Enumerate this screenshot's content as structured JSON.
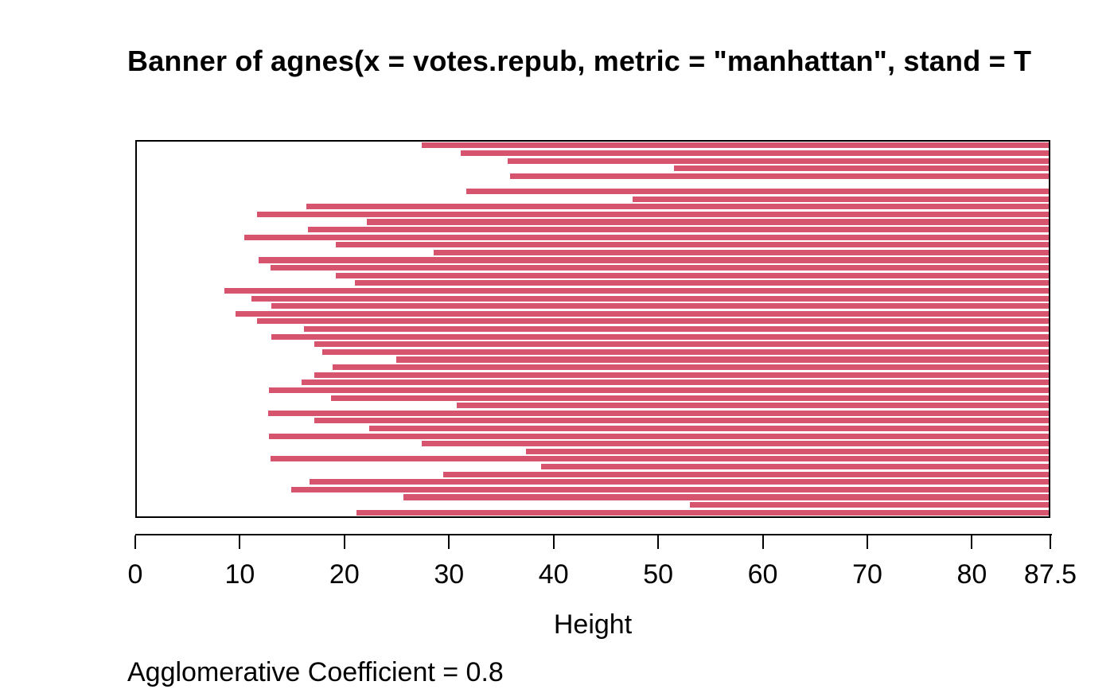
{
  "title": "Banner of  agnes(x = votes.repub, metric = \"manhattan\", stand = T",
  "footer": "Agglomerative Coefficient =  0.8",
  "chart_data": {
    "type": "bar",
    "subtype": "banner-plot",
    "title": "Banner of  agnes(x = votes.repub, metric = \"manhattan\", stand = T",
    "xlabel": "Height",
    "xlim": [
      0,
      87.5
    ],
    "x_ticks": [
      0,
      10,
      20,
      30,
      40,
      50,
      60,
      70,
      80,
      87.5
    ],
    "x_tick_labels": [
      "0",
      "10",
      "20",
      "30",
      "40",
      "50",
      "60",
      "70",
      "80",
      "87.5"
    ],
    "grid": false,
    "legend": "none",
    "bar_color": "#d6546e",
    "background_color": "#ffffff",
    "box_color": "#000000",
    "annotation": "Agglomerative Coefficient =  0.8",
    "bars_note": "each bar spans from its merge height to the axis maximum 87.5; rows ordered top to bottom",
    "merge_heights": [
      27.3,
      31.1,
      35.6,
      51.5,
      35.8,
      87.5,
      31.6,
      47.6,
      16.3,
      11.5,
      22.1,
      16.4,
      10.3,
      19.1,
      28.5,
      11.7,
      12.8,
      19.1,
      20.9,
      8.4,
      11.0,
      12.9,
      9.5,
      11.5,
      16.0,
      12.9,
      17.0,
      17.8,
      24.9,
      18.8,
      17.0,
      15.8,
      12.7,
      18.6,
      30.7,
      12.6,
      17.0,
      22.3,
      12.7,
      27.3,
      37.3,
      12.8,
      38.8,
      29.4,
      16.6,
      14.8,
      25.6,
      53.1,
      21.1
    ]
  }
}
